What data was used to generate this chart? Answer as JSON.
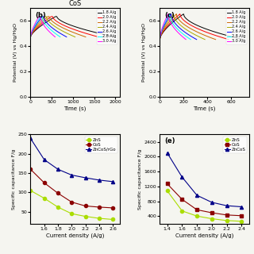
{
  "title_b": "CoS",
  "title_e": "(e)",
  "xlabel_time": "Time (s)",
  "xlabel_cd": "Current density (A/g)",
  "ylabel_potential": "Potential (V) vs Hg/HgO",
  "ylabel_capacitance_d": "Specific capacitance F/g",
  "ylabel_capacitance_e": "Specific capacitance F/g",
  "current_densities": [
    "1.8 A/g",
    "2.0 A/g",
    "2.2 A/g",
    "2.4 A/g",
    "2.6 A/g",
    "2.8 A/g",
    "3.0 A/g"
  ],
  "colors_gcd": [
    "black",
    "red",
    "#cc0000",
    "#00aa00",
    "blue",
    "cyan",
    "magenta",
    "#808000"
  ],
  "panel_b_colors": [
    "black",
    "red",
    "#cc6600",
    "#aaaa00",
    "blue",
    "cyan",
    "magenta",
    "#555500"
  ],
  "panel_c_colors": [
    "black",
    "red",
    "#cc6600",
    "#aaaa00",
    "blue",
    "cyan",
    "magenta",
    "#555500"
  ],
  "legend_labels_gcd": [
    "1.8 A/g",
    "2.0 A/g",
    "2.2 A/g",
    "2.4 A/g",
    "2.6 A/g",
    "2.8 A/g",
    "3.0 A/g"
  ],
  "cd_x_d": [
    1.4,
    1.6,
    1.8,
    2.0,
    2.2,
    2.4,
    2.6
  ],
  "zns_y_d": [
    105,
    85,
    62,
    45,
    38,
    33,
    30
  ],
  "cos_y_d": [
    160,
    125,
    98,
    75,
    65,
    62,
    60
  ],
  "zncos_y_d": [
    240,
    185,
    160,
    145,
    138,
    132,
    128
  ],
  "cd_x_e": [
    1.4,
    1.6,
    1.8,
    2.0,
    2.2,
    2.4
  ],
  "zns_y_e": [
    1080,
    540,
    400,
    330,
    280,
    260
  ],
  "cos_y_e": [
    1270,
    850,
    570,
    490,
    430,
    410
  ],
  "zncos_y_e": [
    2100,
    1450,
    960,
    770,
    680,
    650
  ],
  "legend_labels_bottom": [
    "ZnS",
    "CoS",
    "ZnCoS/rGo"
  ],
  "zns_color": "#aadd00",
  "cos_color": "#8b0000",
  "zncos_color": "#000088",
  "background_color": "#f5f5f0",
  "ylim_potential": [
    0.0,
    0.7
  ],
  "yticks_potential": [
    0.0,
    0.2,
    0.4,
    0.6
  ],
  "panel_b_label": "(b)",
  "panel_c_label": "(c)",
  "panel_e_label": "(e)"
}
